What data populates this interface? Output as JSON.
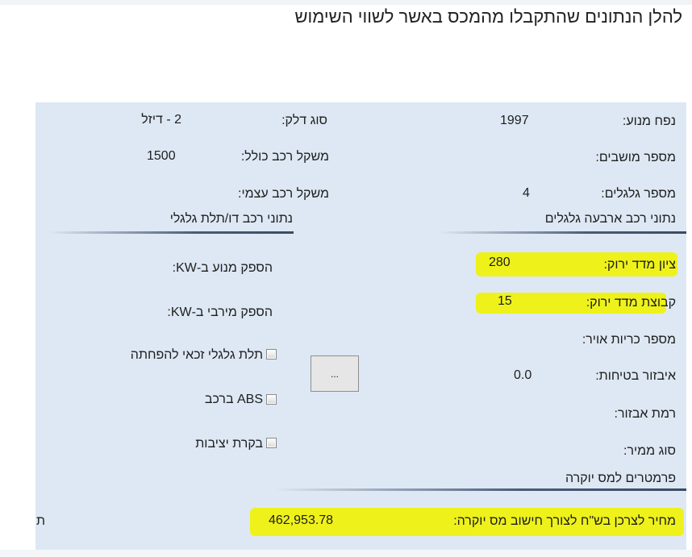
{
  "intro_text": "להלן הנתונים שהתקבלו מהמכס באשר לשווי השימוש",
  "highlight_color": "#eef21a",
  "four_wheel": {
    "engine_volume": {
      "label": "נפח מנוע:",
      "value": "1997"
    },
    "seats": {
      "label": "מספר מושבים:",
      "value": ""
    },
    "wheels": {
      "label": "מספר גלגלים:",
      "value": "4"
    },
    "section_title": "נתוני רכב ארבעה גלגלים"
  },
  "general": {
    "fuel_type": {
      "label": "סוג דלק:",
      "value": "2 - דיזל"
    },
    "total_weight": {
      "label": "משקל רכב כולל:",
      "value": "1500"
    },
    "own_weight": {
      "label": "משקל רכב עצמי:",
      "value": ""
    }
  },
  "two_three_wheel": {
    "section_title": "נתוני רכב דו/תלת גלגלי",
    "engine_power": {
      "label": "הספק מנוע ב-KW:",
      "value": ""
    },
    "max_power": {
      "label": "הספק מירבי ב-KW:",
      "value": ""
    },
    "checkboxes": [
      {
        "label": "תלת גלגלי זכאי להפחתה",
        "checked": false
      },
      {
        "label": "ABS ברכב",
        "checked": false
      },
      {
        "label": "בקרת יציבות",
        "checked": false
      }
    ]
  },
  "green": {
    "score": {
      "label": "ציון מדד ירוק:",
      "value": "280"
    },
    "group": {
      "label": "קבוצת מדד ירוק:",
      "value": "15"
    },
    "airbags": {
      "label": "מספר כריות אויר:",
      "value": ""
    },
    "safety_equipment": {
      "label": "איבזור בטיחות:",
      "value": "0.0"
    },
    "equipment_level": {
      "label": "רמת אבזור:",
      "value": ""
    },
    "transmission": {
      "label": "סוג ממיר:",
      "value": ""
    }
  },
  "ellipsis_button": "...",
  "luxury": {
    "section_title": "פרמטרים למס יוקרה",
    "price": {
      "label": "מחיר לצרכן בש\"ח לצורך חישוב מס יוקרה:",
      "value": "462,953.78"
    },
    "cut_text": "ת"
  }
}
